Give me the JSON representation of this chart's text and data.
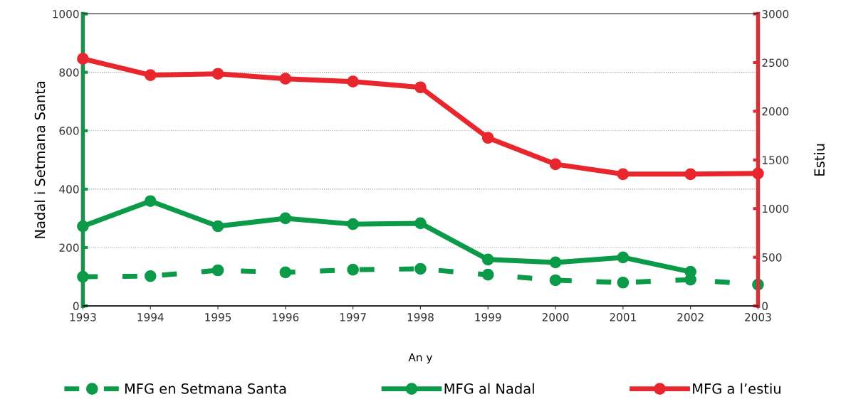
{
  "chart_data": {
    "type": "line",
    "xlabel": "An y",
    "ylabel": "Nadal i Setmana Santa",
    "y2label": "Estiu",
    "x": [
      1993,
      1994,
      1995,
      1996,
      1997,
      1998,
      1999,
      2000,
      2001,
      2002,
      2003
    ],
    "series": [
      {
        "name": "MFG en Setmana Santa",
        "color": "#0a9a48",
        "line_style": "dashed",
        "values": [
          100,
          102,
          122,
          115,
          124,
          127,
          107,
          88,
          80,
          90,
          73
        ]
      },
      {
        "name": "MFG al Nadal",
        "color": "#0a9a48",
        "line_style": "solid",
        "values": [
          273,
          359,
          273,
          300,
          280,
          283,
          159,
          149,
          166,
          117,
          null
        ]
      },
      {
        "name": "MFG a l’estiu",
        "color": "#e8262d",
        "line_style": "solid",
        "axis": "y2",
        "values": [
          2539,
          2371,
          2385,
          2334,
          2305,
          2246,
          1727,
          1456,
          1354,
          1354,
          1361
        ]
      }
    ],
    "xlim": [
      1993,
      2003
    ],
    "xticks": [
      1993,
      1994,
      1995,
      1996,
      1997,
      1998,
      1999,
      2000,
      2001,
      2002,
      2003
    ],
    "ylim": [
      0,
      1000
    ],
    "yticks": [
      0,
      200,
      400,
      600,
      800,
      1000
    ],
    "y2lim": [
      0,
      3000
    ],
    "y2ticks": [
      0,
      500,
      1000,
      1500,
      2000,
      2500,
      3000
    ],
    "grid": "y",
    "legend": "bottom",
    "marker": "circle"
  }
}
